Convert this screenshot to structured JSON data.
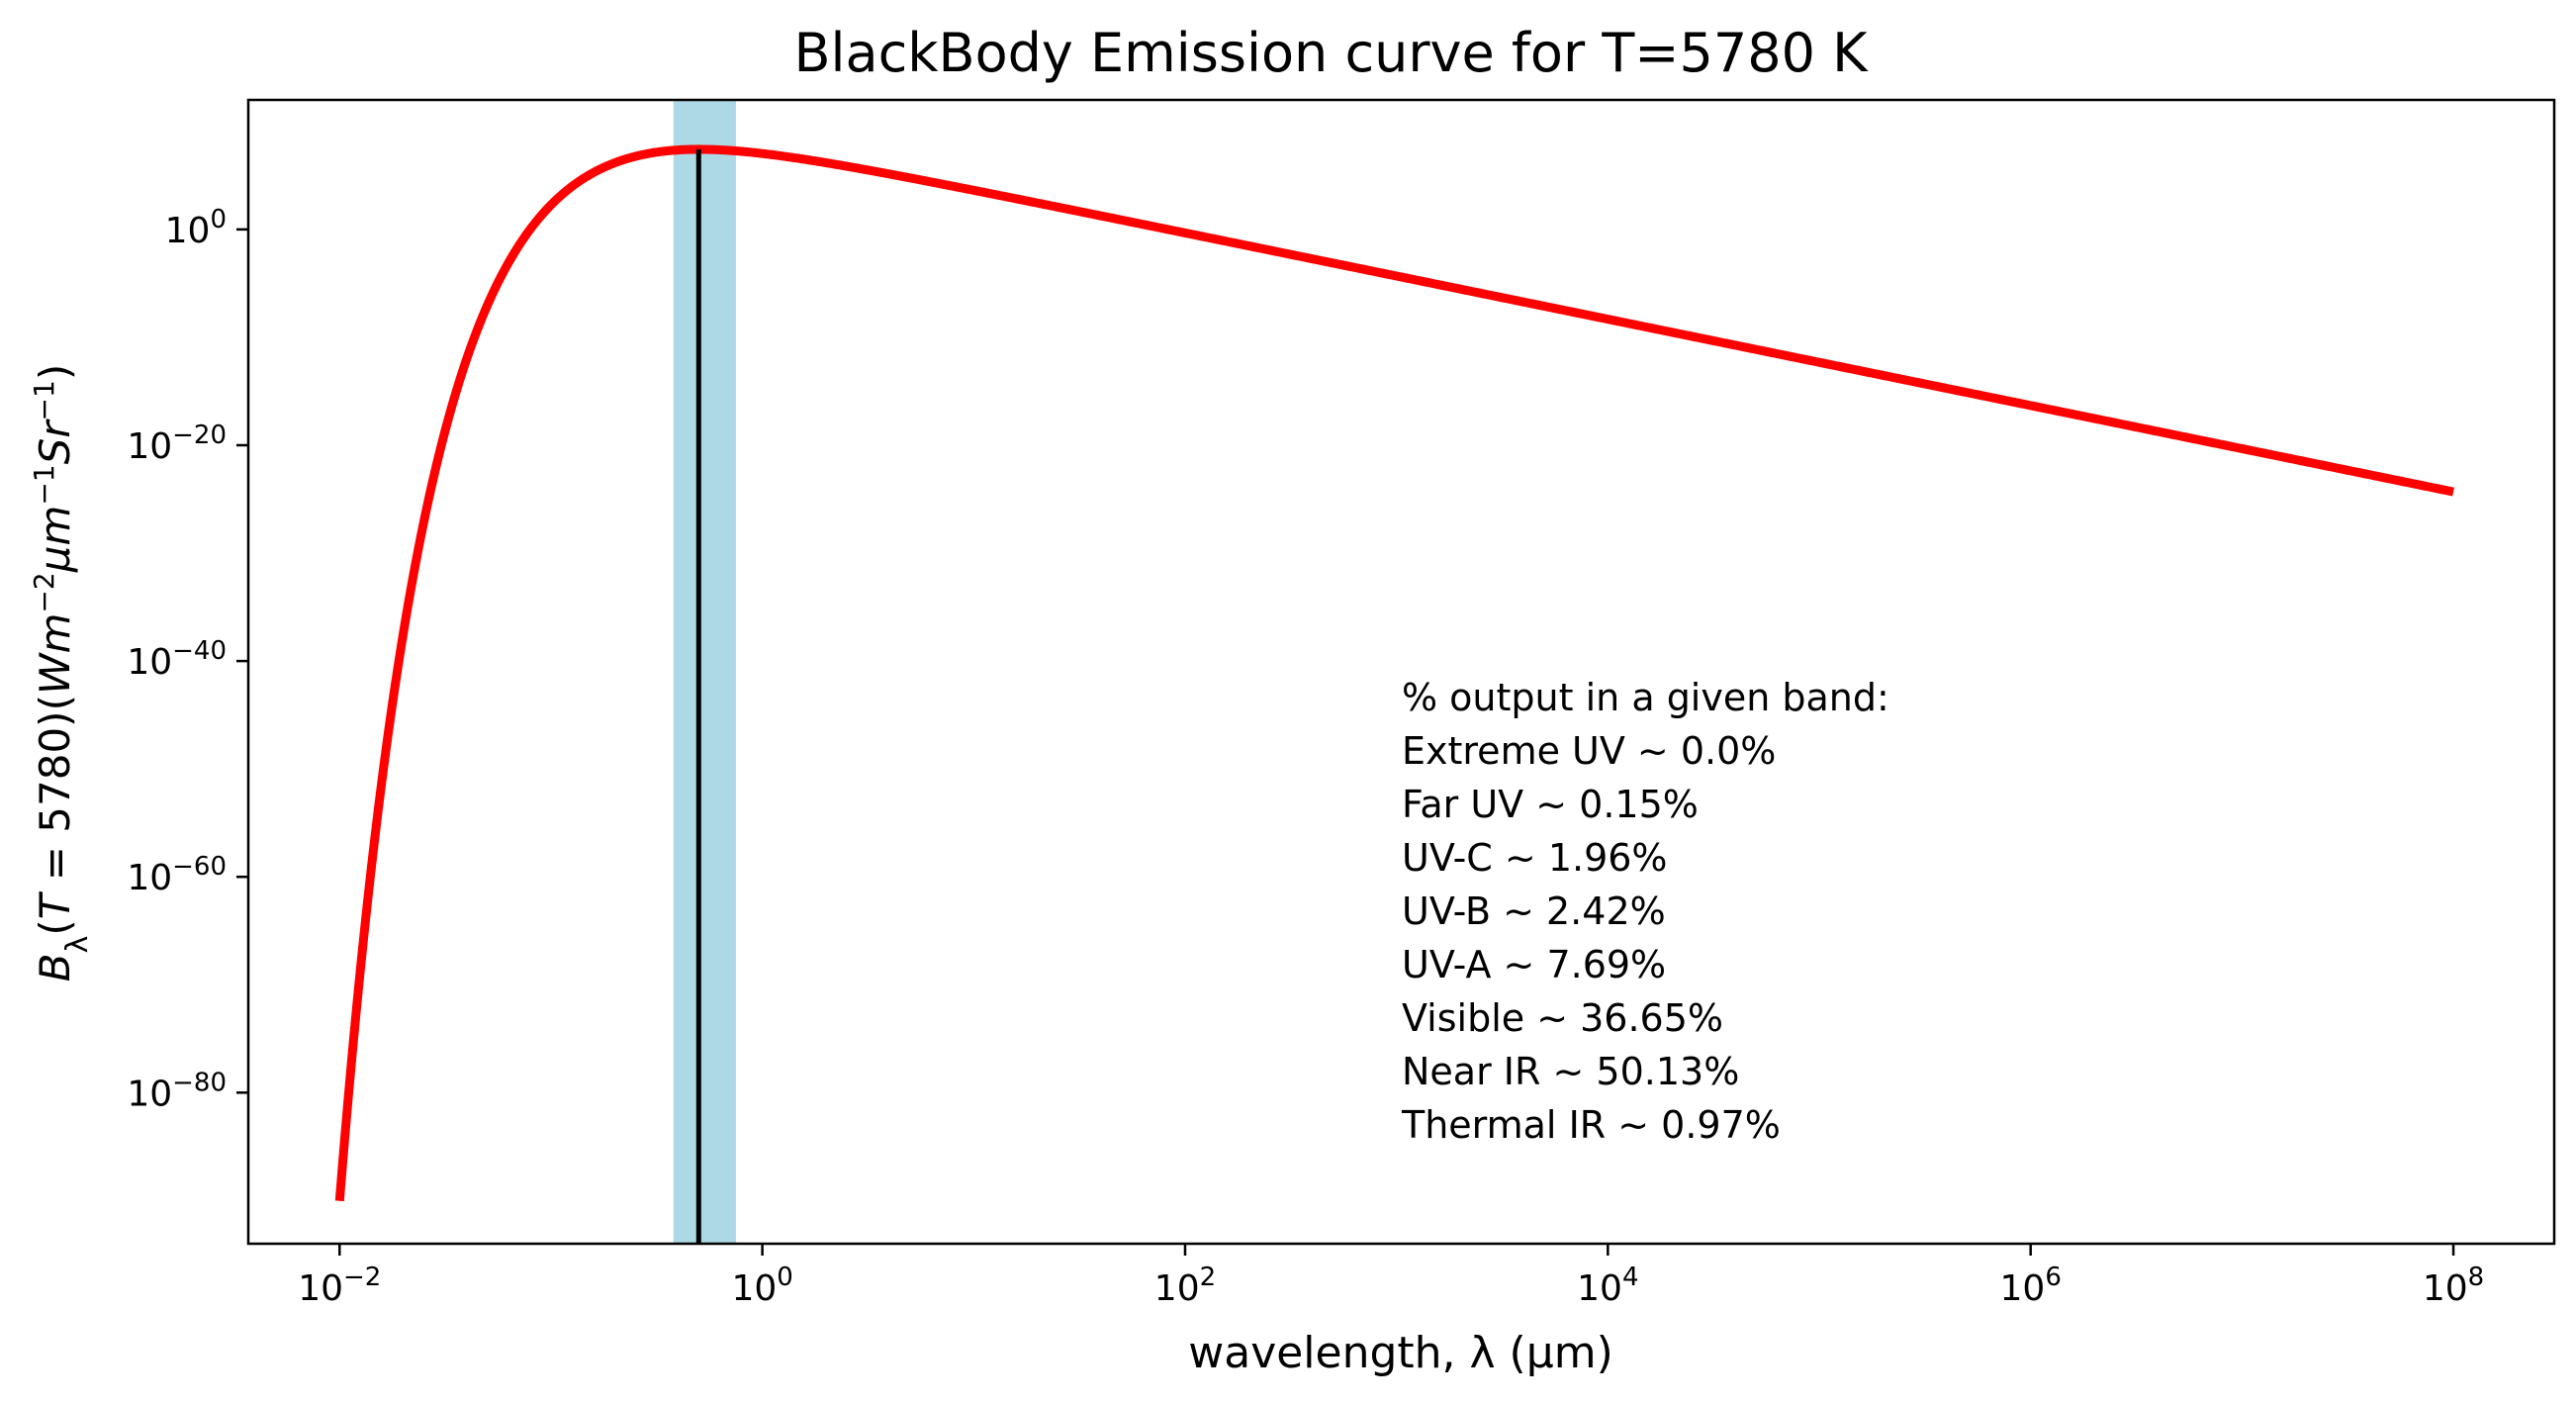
{
  "chart_data": {
    "type": "line",
    "title": "BlackBody Emission curve for T=5780 K",
    "xlabel": "wavelength, λ (µm)",
    "ylabel_parts": {
      "b": "B",
      "lambda_sub": "λ",
      "open": "(",
      "t": "T",
      "eq": " = 5780)(",
      "w": "Wm",
      "exp_w": "−2",
      "mu": "μm",
      "exp_mu": "−1",
      "sr": "Sr",
      "exp_sr": "−1",
      "close": ")"
    },
    "x_scale": "log",
    "y_scale": "log",
    "xlim": [
      0.0037,
      300000000
    ],
    "ylim": [
      1e-94,
      1000000000000.0
    ],
    "x_ticks": [
      {
        "value": 0.01,
        "base": "10",
        "exp": "−2"
      },
      {
        "value": 1,
        "base": "10",
        "exp": "0"
      },
      {
        "value": 100,
        "base": "10",
        "exp": "2"
      },
      {
        "value": 10000,
        "base": "10",
        "exp": "4"
      },
      {
        "value": 1000000,
        "base": "10",
        "exp": "6"
      },
      {
        "value": 100000000,
        "base": "10",
        "exp": "8"
      }
    ],
    "y_ticks": [
      {
        "value": 1,
        "base": "10",
        "exp": "0"
      },
      {
        "value": 1e-20,
        "base": "10",
        "exp": "−20"
      },
      {
        "value": 1e-40,
        "base": "10",
        "exp": "−40"
      },
      {
        "value": 1e-60,
        "base": "10",
        "exp": "−60"
      },
      {
        "value": 1e-80,
        "base": "10",
        "exp": "−80"
      }
    ],
    "grid": false,
    "series": [
      {
        "color": "#ff0000",
        "temperature_K": 5780,
        "x_range": [
          0.01,
          100000000
        ]
      }
    ],
    "peak_line": {
      "x": 0.5,
      "color": "#000000"
    },
    "visible_band": {
      "x_range": [
        0.38,
        0.75
      ],
      "color": "#add8e6"
    },
    "annotation": [
      "% output in a given band:",
      "Extreme UV ~ 0.0%",
      "Far UV ~ 0.15%",
      "UV-C ~ 1.96%",
      "UV-B ~ 2.42%",
      "UV-A ~ 7.69%",
      "Visible ~ 36.65%",
      "Near IR ~ 50.13%",
      "Thermal IR ~ 0.97%"
    ]
  }
}
